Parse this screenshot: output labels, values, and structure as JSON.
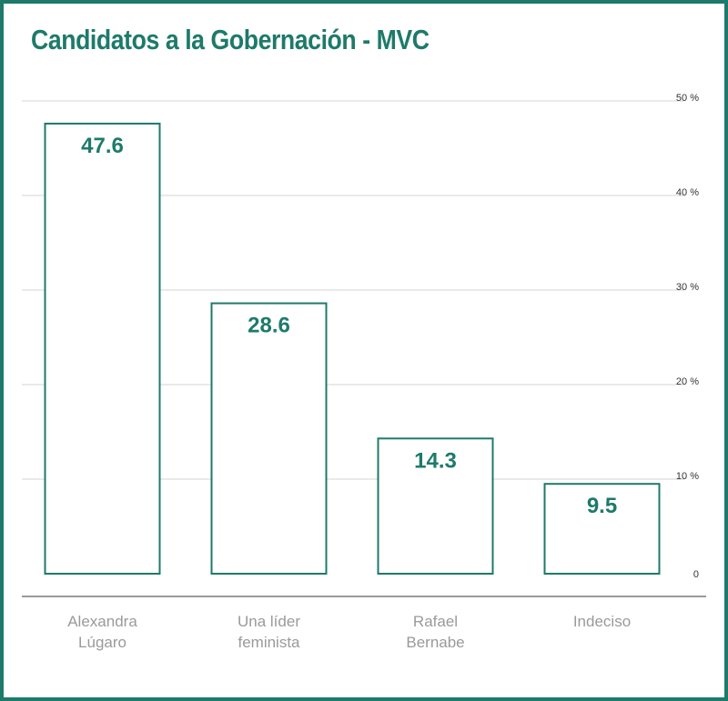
{
  "chart_data": {
    "type": "bar",
    "title": "Candidatos a la Gobernación - MVC",
    "categories": [
      [
        "Alexandra",
        "Lúgaro"
      ],
      [
        "Una líder",
        "feminista"
      ],
      [
        "Rafael",
        "Bernabe"
      ],
      [
        "Indeciso"
      ]
    ],
    "values": [
      47.6,
      28.6,
      14.3,
      9.5
    ],
    "value_labels": [
      "47.6",
      "28.6",
      "14.3",
      "9.5"
    ],
    "ylim": [
      0,
      50
    ],
    "yticks": [
      0,
      10,
      20,
      30,
      40,
      50
    ],
    "ytick_labels": [
      "0",
      "10 %",
      "20 %",
      "30 %",
      "40 %",
      "50 %"
    ],
    "grid": true,
    "xlabel": "",
    "ylabel": "",
    "colors": {
      "accent": "#1e7a6a",
      "bar_fill": "#ffffff",
      "grid": "#d4d4d4",
      "axis": "#9a9a9a",
      "category_text": "#9a9a9a"
    }
  }
}
